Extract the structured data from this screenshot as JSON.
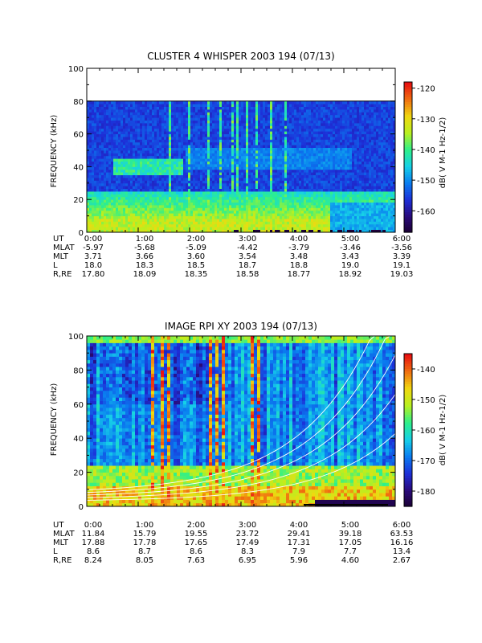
{
  "chart_data": [
    {
      "type": "heatmap",
      "title": "CLUSTER 4 WHISPER 2003 194 (07/13)",
      "ylabel": "FREQUENCY (kHz)",
      "ylim": [
        0,
        100
      ],
      "yticks": [
        "0",
        "20",
        "40",
        "60",
        "80",
        "100"
      ],
      "data_max_frequency_khz": 80,
      "xticks": [
        "0:00",
        "1:00",
        "2:00",
        "3:00",
        "4:00",
        "5:00",
        "6:00"
      ],
      "colorbar": {
        "label": "dB( V M⁻¹ Hz⁻¹ᐟ²)",
        "label_text": "dB( V M-1 Hz-1/2)",
        "range": [
          -167,
          -118
        ],
        "ticks": [
          "-120",
          "-130",
          "-140",
          "-150",
          "-160"
        ]
      },
      "ephemeris": {
        "rows": [
          {
            "name": "UT",
            "values": [
              "0:00",
              "1:00",
              "2:00",
              "3:00",
              "4:00",
              "5:00",
              "6:00"
            ]
          },
          {
            "name": "MLAT",
            "values": [
              "-5.97",
              "-5.68",
              "-5.09",
              "-4.42",
              "-3.79",
              "-3.46",
              "-3.56"
            ]
          },
          {
            "name": "MLT",
            "values": [
              "3.71",
              "3.66",
              "3.60",
              "3.54",
              "3.48",
              "3.43",
              "3.39"
            ]
          },
          {
            "name": "L",
            "values": [
              "18.0",
              "18.3",
              "18.5",
              "18.7",
              "18.8",
              "19.0",
              "19.1"
            ]
          },
          {
            "name": "R,RE",
            "values": [
              "17.80",
              "18.09",
              "18.35",
              "18.58",
              "18.77",
              "18.92",
              "19.03"
            ]
          }
        ]
      }
    },
    {
      "type": "heatmap",
      "title": "IMAGE RPI XY 2003 194 (07/13)",
      "ylabel": "FREQUENCY (kHz)",
      "ylim": [
        0,
        100
      ],
      "yticks": [
        "0",
        "20",
        "40",
        "60",
        "80",
        "100"
      ],
      "xticks": [
        "0:00",
        "1:00",
        "2:00",
        "3:00",
        "4:00",
        "5:00",
        "6:00"
      ],
      "colorbar": {
        "label_text": "dB( V M-1 Hz-1/2)",
        "range": [
          -185,
          -135
        ],
        "ticks": [
          "-140",
          "-150",
          "-160",
          "-170",
          "-180"
        ]
      },
      "ephemeris": {
        "rows": [
          {
            "name": "UT",
            "values": [
              "0:00",
              "1:00",
              "2:00",
              "3:00",
              "4:00",
              "5:00",
              "6:00"
            ]
          },
          {
            "name": "MLAT",
            "values": [
              "11.84",
              "15.79",
              "19.55",
              "23.72",
              "29.41",
              "39.18",
              "63.53"
            ]
          },
          {
            "name": "MLT",
            "values": [
              "17.88",
              "17.78",
              "17.65",
              "17.49",
              "17.31",
              "17.05",
              "16.16"
            ]
          },
          {
            "name": "L",
            "values": [
              "8.6",
              "8.7",
              "8.6",
              "8.3",
              "7.9",
              "7.7",
              "13.4"
            ]
          },
          {
            "name": "R,RE",
            "values": [
              "8.24",
              "8.05",
              "7.63",
              "6.95",
              "5.96",
              "4.60",
              "2.67"
            ]
          }
        ]
      }
    }
  ],
  "colors": {
    "background": "#ffffff",
    "colormap": [
      "#1a0030",
      "#2a0a7a",
      "#1d2fd8",
      "#0a7cf0",
      "#16d0e8",
      "#2ef08a",
      "#b8f020",
      "#f0d810",
      "#f07010",
      "#e81010"
    ]
  }
}
